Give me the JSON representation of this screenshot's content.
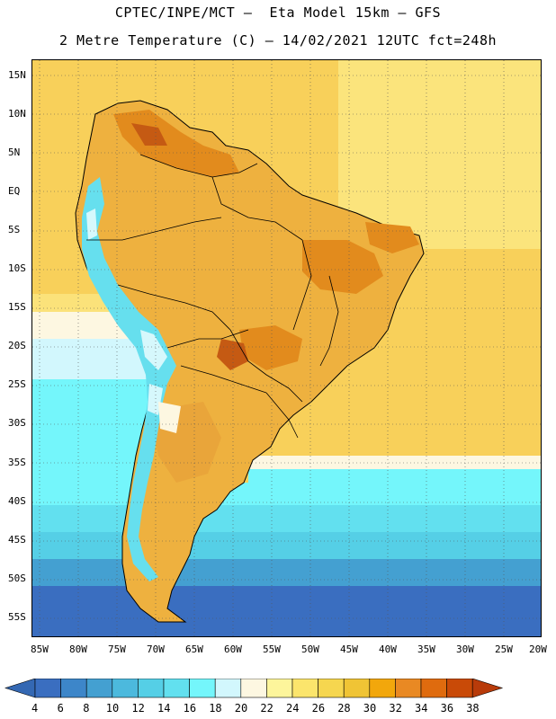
{
  "header": {
    "line1": "CPTEC/INPE/MCT —  Eta Model 15km — GFS",
    "line2": "2 Metre Temperature (C) — 14/02/2021 12UTC fct=248h"
  },
  "axes": {
    "lat_labels": [
      "15N",
      "10N",
      "5N",
      "EQ",
      "5S",
      "10S",
      "15S",
      "20S",
      "25S",
      "30S",
      "35S",
      "40S",
      "45S",
      "50S",
      "55S"
    ],
    "lon_labels": [
      "85W",
      "80W",
      "75W",
      "70W",
      "65W",
      "60W",
      "55W",
      "50W",
      "45W",
      "40W",
      "35W",
      "30W",
      "25W",
      "20W"
    ]
  },
  "colorbar": {
    "labels": [
      "4",
      "6",
      "8",
      "10",
      "12",
      "14",
      "16",
      "18",
      "20",
      "22",
      "24",
      "26",
      "28",
      "30",
      "32",
      "34",
      "36",
      "38"
    ],
    "colors": [
      "#3a6ec0",
      "#3d86c9",
      "#44a0d1",
      "#4cb9dd",
      "#55cfe6",
      "#62e0ef",
      "#74f6fb",
      "#d2f7fd",
      "#fdf7e1",
      "#fdf59b",
      "#fbe56c",
      "#f6d64f",
      "#f0c435",
      "#f2a70c",
      "#e98923",
      "#df6b0e",
      "#c94a07"
    ],
    "low_color": "#3468b3",
    "high_color": "#b83b0a"
  },
  "palette": {
    "land": "#eeb13f",
    "land_hot": "#e28b1d",
    "land_very_hot": "#c55a13",
    "andes": "#66dfee",
    "andes_peak": "#d6f8fc",
    "border": "#000000"
  }
}
